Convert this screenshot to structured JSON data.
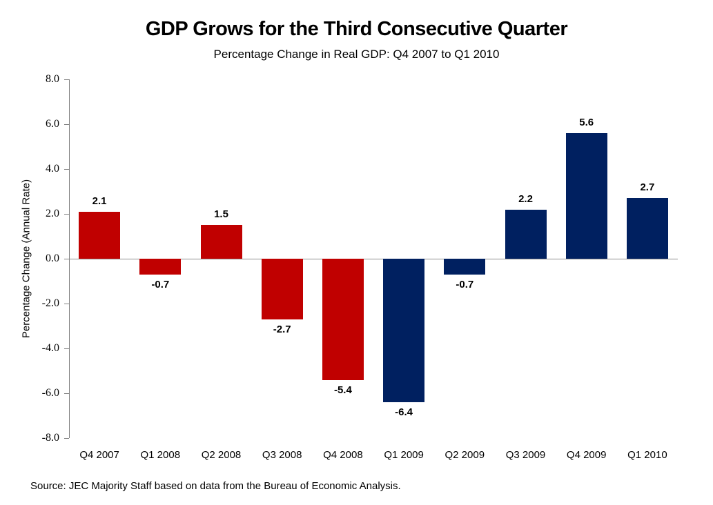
{
  "chart_data": {
    "type": "bar",
    "title": "GDP Grows for the Third Consecutive Quarter",
    "subtitle": "Percentage Change in Real GDP: Q4 2007 to Q1 2010",
    "ylabel": "Percentage Change (Annual Rate)",
    "xlabel": "",
    "source_note": "Source: JEC Majority Staff based on data from the Bureau of Economic Analysis.",
    "categories": [
      "Q4 2007",
      "Q1 2008",
      "Q2 2008",
      "Q3 2008",
      "Q4 2008",
      "Q1 2009",
      "Q2 2009",
      "Q3 2009",
      "Q4 2009",
      "Q1 2010"
    ],
    "values": [
      2.1,
      -0.7,
      1.5,
      -2.7,
      -5.4,
      -6.4,
      -0.7,
      2.2,
      5.6,
      2.7
    ],
    "value_labels": [
      "2.1",
      "-0.7",
      "1.5",
      "-2.7",
      "-5.4",
      "-6.4",
      "-0.7",
      "2.2",
      "5.6",
      "2.7"
    ],
    "bar_colors": [
      "#C00000",
      "#C00000",
      "#C00000",
      "#C00000",
      "#C00000",
      "#002060",
      "#002060",
      "#002060",
      "#002060",
      "#002060"
    ],
    "ylim": [
      -8,
      8
    ],
    "ytick_step": 2,
    "ytick_labels": [
      "8.0",
      "6.0",
      "4.0",
      "2.0",
      "0.0",
      "-2.0",
      "-4.0",
      "-6.0",
      "-8.0"
    ],
    "grid": false,
    "legend": "none",
    "colors": {
      "red_bars": "#C00000",
      "navy_bars": "#002060",
      "axis_line": "#808080",
      "zero_line": "#8C8C8C",
      "text": "#000000",
      "background": "#FFFFFF"
    }
  }
}
